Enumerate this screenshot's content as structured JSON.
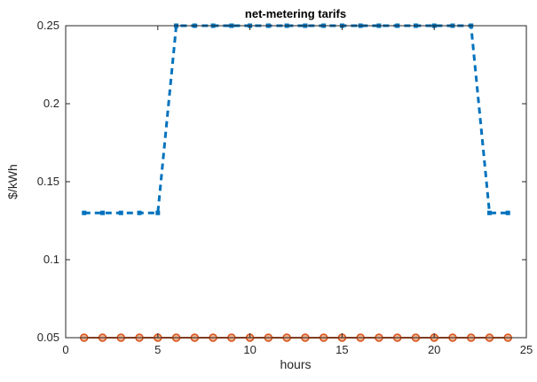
{
  "chart_data": {
    "type": "line",
    "title": "net-metering tarifs",
    "xlabel": "hours",
    "ylabel": "$/kWh",
    "xlim": [
      0,
      25
    ],
    "ylim": [
      0.05,
      0.25
    ],
    "xticks": [
      0,
      5,
      10,
      15,
      20,
      25
    ],
    "yticks": [
      0.05,
      0.1,
      0.15,
      0.2,
      0.25
    ],
    "xtick_labels": [
      "0",
      "5",
      "10",
      "15",
      "20",
      "25"
    ],
    "ytick_labels": [
      "0.05",
      "0.1",
      "0.15",
      "0.2",
      "0.25"
    ],
    "grid": false,
    "legend": "none",
    "x": [
      1,
      2,
      3,
      4,
      5,
      6,
      7,
      8,
      9,
      10,
      11,
      12,
      13,
      14,
      15,
      16,
      17,
      18,
      19,
      20,
      21,
      22,
      23,
      24
    ],
    "series": [
      {
        "values": [
          0.13,
          0.13,
          0.13,
          0.13,
          0.13,
          0.25,
          0.25,
          0.25,
          0.25,
          0.25,
          0.25,
          0.25,
          0.25,
          0.25,
          0.25,
          0.25,
          0.25,
          0.25,
          0.25,
          0.25,
          0.25,
          0.25,
          0.13,
          0.13
        ],
        "color": "#0072BD",
        "line_style": "dashed",
        "marker": "square"
      },
      {
        "values": [
          0.05,
          0.05,
          0.05,
          0.05,
          0.05,
          0.05,
          0.05,
          0.05,
          0.05,
          0.05,
          0.05,
          0.05,
          0.05,
          0.05,
          0.05,
          0.05,
          0.05,
          0.05,
          0.05,
          0.05,
          0.05,
          0.05,
          0.05,
          0.05
        ],
        "color": "#D95319",
        "line_style": "solid",
        "marker": "circle"
      }
    ]
  }
}
